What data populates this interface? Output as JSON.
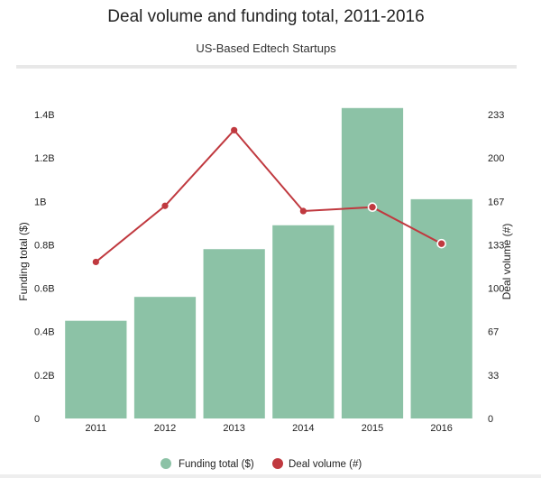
{
  "chart_data": {
    "type": "bar",
    "title": "Deal volume and funding total, 2011-2016",
    "subtitle": "US-Based Edtech Startups",
    "categories": [
      "2011",
      "2012",
      "2013",
      "2014",
      "2015",
      "2016"
    ],
    "series": [
      {
        "name": "Funding total ($)",
        "type": "bar",
        "axis": "left",
        "color": "#8cc2a6",
        "values": [
          450000000,
          560000000,
          780000000,
          890000000,
          1430000000,
          1010000000
        ]
      },
      {
        "name": "Deal volume (#)",
        "type": "line",
        "axis": "right",
        "color": "#c0393f",
        "values": [
          120,
          163,
          221,
          159,
          162,
          134
        ]
      }
    ],
    "ylabel": "Funding total ($)",
    "y2label": "Deal volume (#)",
    "ylim": [
      0,
      1400000000
    ],
    "y2lim": [
      0,
      233
    ],
    "yticks": [
      "0",
      "0.2B",
      "0.4B",
      "0.6B",
      "0.8B",
      "1B",
      "1.2B",
      "1.4B"
    ],
    "y2ticks": [
      "0",
      "33",
      "67",
      "100",
      "133",
      "167",
      "200",
      "233"
    ],
    "grid": false,
    "legend_position": "bottom"
  }
}
